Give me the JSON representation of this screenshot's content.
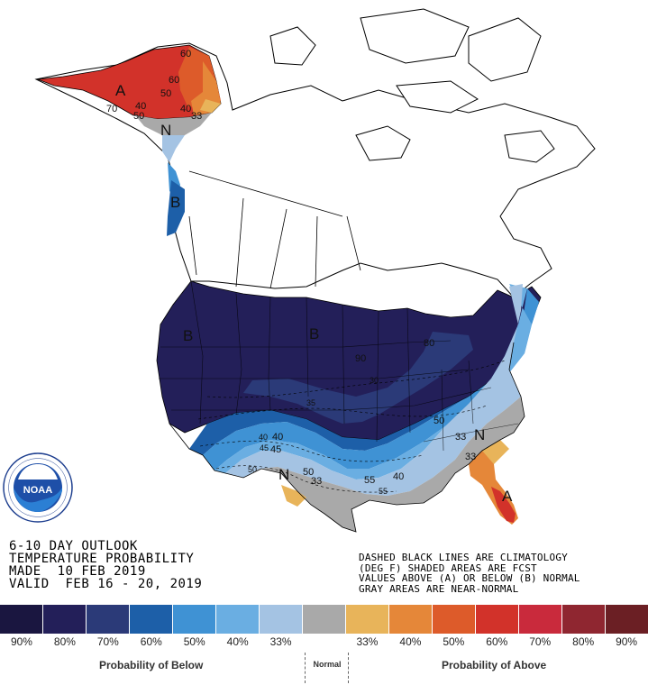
{
  "map": {
    "region_letters": [
      {
        "name": "alaska-above",
        "letter": "A"
      },
      {
        "name": "alaska-normal",
        "letter": "N"
      },
      {
        "name": "panhandle-below",
        "letter": "B"
      },
      {
        "name": "west-below",
        "letter": "B"
      },
      {
        "name": "plains-below",
        "letter": "B"
      },
      {
        "name": "texas-normal",
        "letter": "N"
      },
      {
        "name": "carolina-normal",
        "letter": "N"
      },
      {
        "name": "florida-above",
        "letter": "A"
      }
    ],
    "contour_labels": [
      {
        "name": "ak-60-north",
        "text": "60"
      },
      {
        "name": "ak-60",
        "text": "60"
      },
      {
        "name": "ak-50",
        "text": "50"
      },
      {
        "name": "ak-40",
        "text": "40"
      },
      {
        "name": "ak-33",
        "text": "33"
      },
      {
        "name": "ak-40-west",
        "text": "40"
      },
      {
        "name": "ak-50-west",
        "text": "50"
      },
      {
        "name": "ak-70",
        "text": "70"
      },
      {
        "name": "glakes-80",
        "text": "80"
      },
      {
        "name": "midwest-90",
        "text": "90"
      },
      {
        "name": "south-50",
        "text": "50"
      },
      {
        "name": "se-33",
        "text": "33"
      },
      {
        "name": "ga-33",
        "text": "33"
      },
      {
        "name": "tx-40",
        "text": "40"
      },
      {
        "name": "tx-45",
        "text": "45"
      },
      {
        "name": "tx-50",
        "text": "50"
      },
      {
        "name": "tx-33",
        "text": "33"
      },
      {
        "name": "gulf-55",
        "text": "55"
      },
      {
        "name": "gulf-40",
        "text": "40"
      }
    ],
    "climatology_labels": [
      "30",
      "35",
      "40",
      "45",
      "50",
      "55"
    ],
    "colors": {
      "above_33_40": "#e8b45a",
      "above_40_50": "#e58739",
      "above_50_60": "#dd5b2a",
      "above_60_70": "#d2322a",
      "below_33_40": "#a4c3e3",
      "below_40_50": "#6aaee2",
      "below_50_60": "#3f92d4",
      "below_60_70": "#1d5fa8",
      "below_70_80": "#2b3a78",
      "below_80_90": "#231f59",
      "near_normal": "#a9a9a9"
    }
  },
  "title": {
    "line1": "6-10 DAY OUTLOOK",
    "line2": "TEMPERATURE PROBABILITY",
    "line3": "MADE  10 FEB 2019",
    "line4": "VALID  FEB 16 - 20, 2019"
  },
  "notes": {
    "line1": "DASHED BLACK LINES ARE CLIMATOLOGY",
    "line2": "(DEG F) SHADED AREAS ARE FCST",
    "line3": "VALUES ABOVE (A) OR BELOW (B) NORMAL",
    "line4": "GRAY AREAS ARE NEAR-NORMAL"
  },
  "logo": {
    "text": "NOAA",
    "ring_text": "NATIONAL OCEANIC AND ATMOSPHERIC ADMINISTRATION · U.S. DEPARTMENT OF COMMERCE"
  },
  "legend": {
    "swatches": [
      {
        "name": "below-90",
        "color": "#1a1640"
      },
      {
        "name": "below-80",
        "color": "#231f59"
      },
      {
        "name": "below-70",
        "color": "#2b3a78"
      },
      {
        "name": "below-60",
        "color": "#1d5fa8"
      },
      {
        "name": "below-50",
        "color": "#3f92d4"
      },
      {
        "name": "below-40",
        "color": "#6aaee2"
      },
      {
        "name": "below-33",
        "color": "#a4c3e3"
      },
      {
        "name": "normal",
        "color": "#a9a9a9"
      },
      {
        "name": "above-33",
        "color": "#e8b45a"
      },
      {
        "name": "above-40",
        "color": "#e58739"
      },
      {
        "name": "above-50",
        "color": "#dd5b2a"
      },
      {
        "name": "above-60",
        "color": "#d2322a"
      },
      {
        "name": "above-70",
        "color": "#c92a3c"
      },
      {
        "name": "above-80",
        "color": "#8f2630"
      },
      {
        "name": "above-90",
        "color": "#6b1f24"
      }
    ],
    "ticks": [
      "90%",
      "80%",
      "70%",
      "60%",
      "50%",
      "40%",
      "33%",
      "",
      "33%",
      "40%",
      "50%",
      "60%",
      "70%",
      "80%",
      "90%"
    ],
    "below_label": "Probability of Below",
    "normal_label": "Normal",
    "above_label": "Probability of Above"
  }
}
